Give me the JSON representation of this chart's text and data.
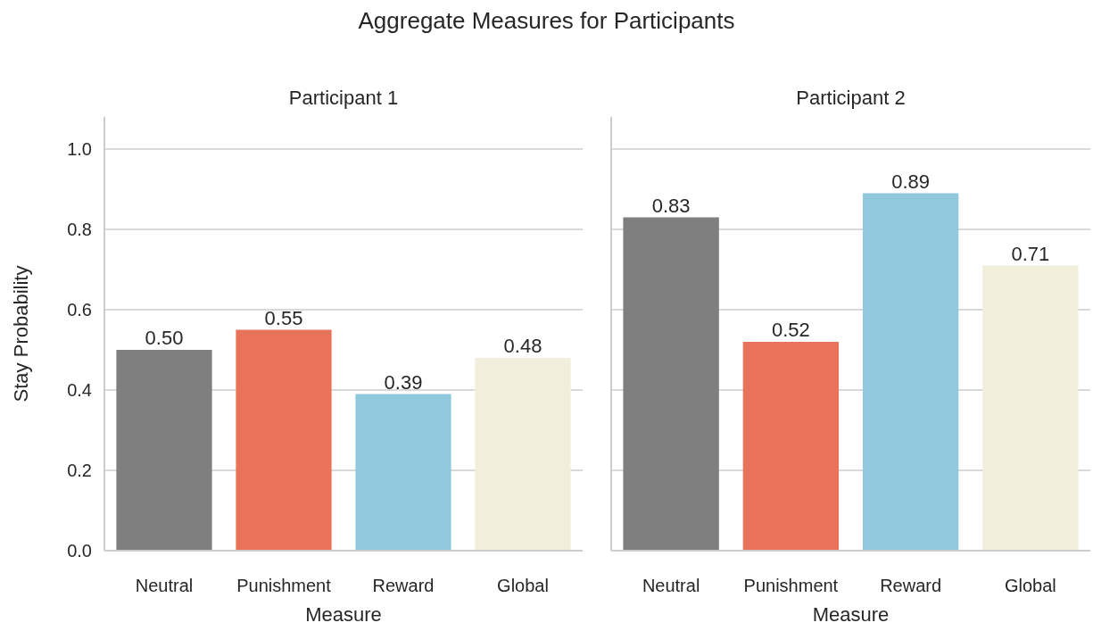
{
  "chart_data": [
    {
      "type": "bar",
      "title": "Participant 1",
      "xlabel": "Measure",
      "ylabel": "Stay Probability",
      "annotations": [
        "Aggregate Measures for Participants"
      ],
      "categories": [
        "Neutral",
        "Punishment",
        "Reward",
        "Global"
      ],
      "values": [
        0.5,
        0.55,
        0.39,
        0.48
      ],
      "value_labels": [
        "0.50",
        "0.55",
        "0.39",
        "0.48"
      ],
      "colors": [
        "#7f7f7f",
        "#e8735a",
        "#90c8dc",
        "#f1efdc"
      ],
      "ylim": [
        0,
        1.08
      ],
      "yticks": [
        {
          "value": 0,
          "label": "0.0"
        },
        {
          "value": 0.2,
          "label": "0.2"
        },
        {
          "value": 0.4,
          "label": "0.4"
        },
        {
          "value": 0.6,
          "label": "0.6"
        },
        {
          "value": 0.8,
          "label": "0.8"
        },
        {
          "value": 1,
          "label": "1.0"
        }
      ],
      "grid": "y"
    },
    {
      "type": "bar",
      "title": "Participant 2",
      "xlabel": "Measure",
      "categories": [
        "Neutral",
        "Punishment",
        "Reward",
        "Global"
      ],
      "values": [
        0.83,
        0.52,
        0.89,
        0.71
      ],
      "value_labels": [
        "0.83",
        "0.52",
        "0.89",
        "0.71"
      ],
      "colors": [
        "#7f7f7f",
        "#e8735a",
        "#90c8dc",
        "#f1efdc"
      ],
      "ylim": [
        0,
        1.08
      ],
      "yticks": [
        {
          "value": 0,
          "label": null
        },
        {
          "value": 0.2,
          "label": null
        },
        {
          "value": 0.4,
          "label": null
        },
        {
          "value": 0.6,
          "label": null
        },
        {
          "value": 0.8,
          "label": null
        },
        {
          "value": 1,
          "label": null
        }
      ],
      "grid": "y",
      "tick_labels": "x"
    }
  ]
}
